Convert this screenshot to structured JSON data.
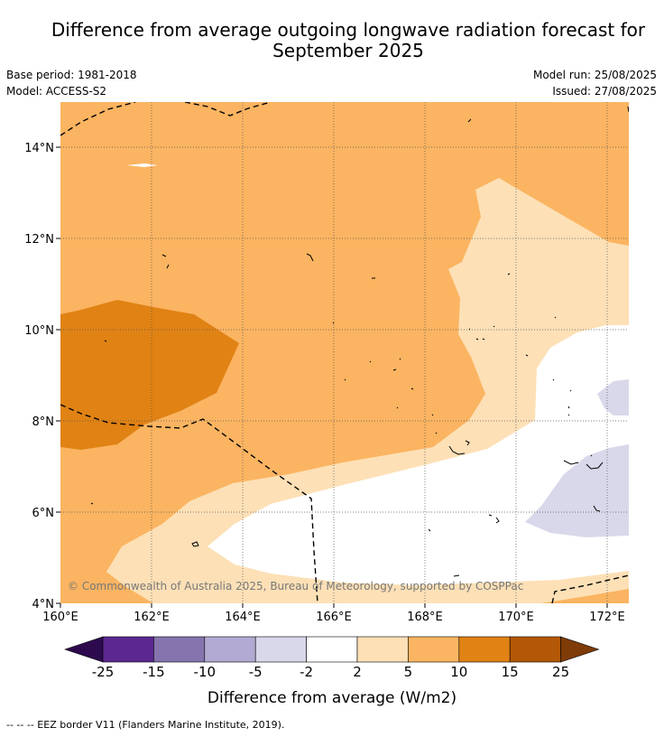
{
  "title_line1": "Difference from average outgoing longwave radiation forecast for",
  "title_line2": "September 2025",
  "base_period": "Base period: 1981-2018",
  "model": "Model: ACCESS-S2",
  "model_run": "Model run: 25/08/2025",
  "issued": "Issued: 27/08/2025",
  "copyright": "© Commonwealth of Australia 2025, Bureau of Meteorology, supported by COSPPac",
  "lon_labels": [
    "160°E",
    "162°E",
    "164°E",
    "166°E",
    "168°E",
    "170°E",
    "172°E"
  ],
  "lat_labels": [
    "14°N",
    "12°N",
    "10°N",
    "8°N",
    "6°N",
    "4°N"
  ],
  "colorbar": {
    "title": "Difference from average (W/m2)",
    "ticks": [
      "-25",
      "-15",
      "-10",
      "-5",
      "-2",
      "2",
      "5",
      "10",
      "15",
      "25"
    ],
    "colors": [
      "#2d0a4e",
      "#5a2890",
      "#8574ad",
      "#b2aad2",
      "#d8d8ea",
      "#ffffff",
      "#fde0b6",
      "#fbb461",
      "#e08214",
      "#b35806",
      "#7f3b08"
    ]
  },
  "footnote": "--  --  -- EEZ border V11 (Flanders Marine Institute, 2019)."
}
